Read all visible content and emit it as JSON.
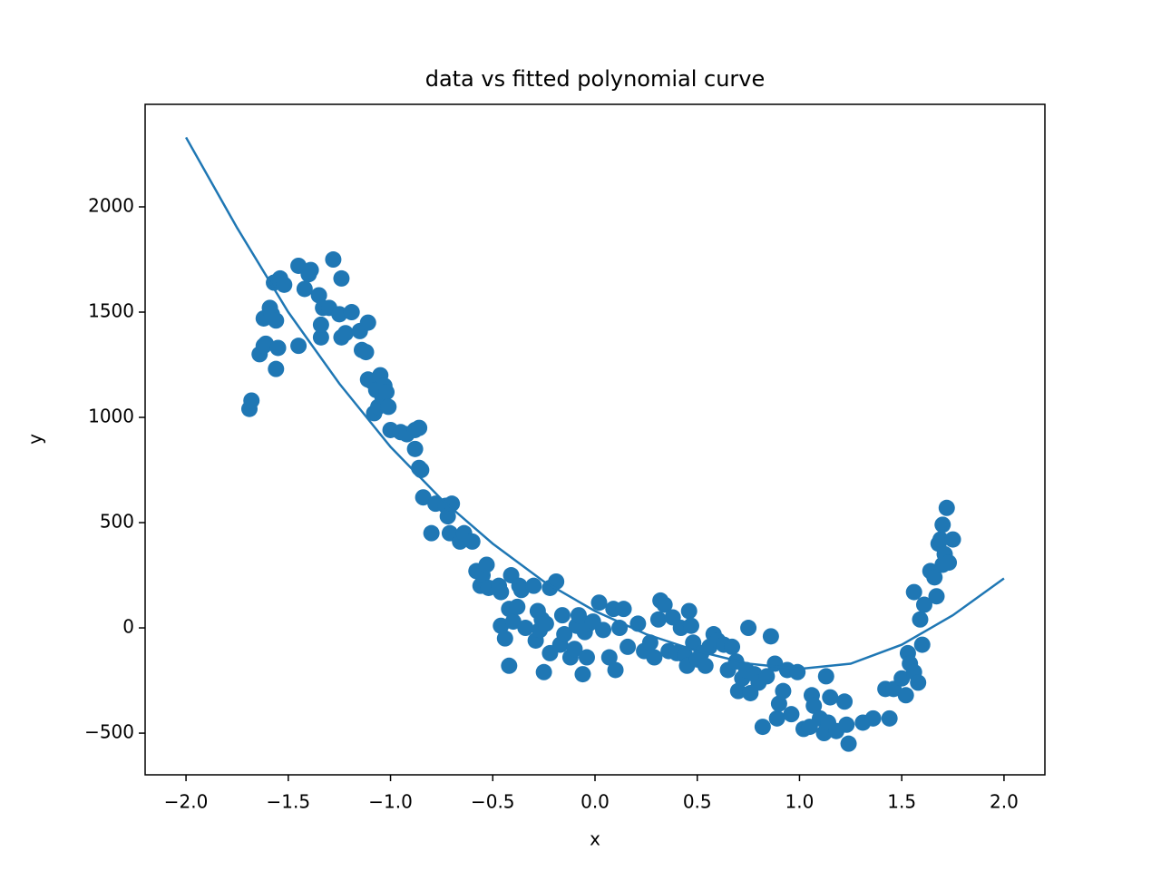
{
  "chart_data": {
    "type": "scatter",
    "title": "data vs fitted polynomial curve",
    "x_label": "x",
    "y_label": "y",
    "xlim": [
      -2.2,
      2.2
    ],
    "ylim": [
      -698,
      2487
    ],
    "xticks": [
      {
        "value": -2.0,
        "label": "−2.0"
      },
      {
        "value": -1.5,
        "label": "−1.5"
      },
      {
        "value": -1.0,
        "label": "−1.0"
      },
      {
        "value": -0.5,
        "label": "−0.5"
      },
      {
        "value": 0.0,
        "label": "0.0"
      },
      {
        "value": 0.5,
        "label": "0.5"
      },
      {
        "value": 1.0,
        "label": "1.0"
      },
      {
        "value": 1.5,
        "label": "1.5"
      },
      {
        "value": 2.0,
        "label": "2.0"
      }
    ],
    "yticks": [
      {
        "value": -500,
        "label": "−500"
      },
      0,
      500,
      1000,
      1500,
      2000
    ],
    "grid": false,
    "series": [
      {
        "type": "scatter",
        "color": "#1f77b4",
        "x": [
          -1.69,
          -1.68,
          -1.64,
          -1.62,
          -1.62,
          -1.61,
          -1.59,
          -1.58,
          -1.57,
          -1.56,
          -1.56,
          -1.55,
          -1.54,
          -1.52,
          -1.45,
          -1.45,
          -1.42,
          -1.4,
          -1.39,
          -1.35,
          -1.34,
          -1.34,
          -1.33,
          -1.3,
          -1.28,
          -1.25,
          -1.24,
          -1.24,
          -1.22,
          -1.19,
          -1.15,
          -1.14,
          -1.12,
          -1.11,
          -1.11,
          -1.09,
          -1.08,
          -1.07,
          -1.06,
          -1.05,
          -1.04,
          -1.03,
          -1.02,
          -1.01,
          -1.0,
          -0.95,
          -0.92,
          -0.88,
          -0.88,
          -0.86,
          -0.86,
          -0.85,
          -0.84,
          -0.8,
          -0.78,
          -0.73,
          -0.72,
          -0.71,
          -0.7,
          -0.66,
          -0.64,
          -0.6,
          -0.58,
          -0.56,
          -0.55,
          -0.53,
          -0.52,
          -0.47,
          -0.46,
          -0.46,
          -0.44,
          -0.42,
          -0.42,
          -0.41,
          -0.4,
          -0.38,
          -0.37,
          -0.36,
          -0.34,
          -0.3,
          -0.29,
          -0.28,
          -0.27,
          -0.26,
          -0.25,
          -0.24,
          -0.22,
          -0.22,
          -0.19,
          -0.17,
          -0.16,
          -0.15,
          -0.12,
          -0.1,
          -0.09,
          -0.08,
          -0.06,
          -0.05,
          -0.04,
          -0.03,
          -0.01,
          0.02,
          0.04,
          0.07,
          0.09,
          0.1,
          0.12,
          0.14,
          0.16,
          0.21,
          0.24,
          0.27,
          0.29,
          0.31,
          0.32,
          0.34,
          0.36,
          0.38,
          0.4,
          0.42,
          0.44,
          0.45,
          0.46,
          0.47,
          0.48,
          0.5,
          0.52,
          0.54,
          0.56,
          0.58,
          0.6,
          0.63,
          0.65,
          0.67,
          0.69,
          0.7,
          0.72,
          0.74,
          0.75,
          0.76,
          0.78,
          0.8,
          0.82,
          0.84,
          0.86,
          0.88,
          0.89,
          0.9,
          0.92,
          0.94,
          0.96,
          0.99,
          1.02,
          1.05,
          1.06,
          1.07,
          1.1,
          1.12,
          1.13,
          1.14,
          1.15,
          1.18,
          1.22,
          1.23,
          1.24,
          1.31,
          1.36,
          1.42,
          1.44,
          1.46,
          1.5,
          1.52,
          1.53,
          1.54,
          1.56,
          1.56,
          1.58,
          1.59,
          1.6,
          1.61,
          1.64,
          1.66,
          1.67,
          1.68,
          1.69,
          1.7,
          1.7,
          1.71,
          1.72,
          1.73,
          1.75
        ],
        "values": [
          1040,
          1080,
          1300,
          1340,
          1470,
          1350,
          1520,
          1490,
          1640,
          1230,
          1460,
          1330,
          1660,
          1630,
          1340,
          1720,
          1610,
          1680,
          1700,
          1580,
          1380,
          1440,
          1520,
          1520,
          1750,
          1490,
          1380,
          1660,
          1400,
          1500,
          1410,
          1320,
          1310,
          1450,
          1180,
          1170,
          1020,
          1130,
          1050,
          1200,
          1100,
          1150,
          1120,
          1050,
          940,
          930,
          920,
          850,
          940,
          950,
          760,
          750,
          620,
          450,
          590,
          580,
          530,
          450,
          590,
          410,
          450,
          410,
          270,
          200,
          250,
          300,
          190,
          200,
          170,
          10,
          -50,
          -180,
          90,
          250,
          30,
          100,
          200,
          180,
          0,
          200,
          -60,
          80,
          -10,
          40,
          -210,
          20,
          -120,
          190,
          220,
          -80,
          60,
          -30,
          -140,
          -100,
          10,
          60,
          -220,
          -20,
          -140,
          20,
          30,
          120,
          -10,
          -140,
          90,
          -200,
          0,
          90,
          -90,
          20,
          -110,
          -70,
          -140,
          40,
          130,
          110,
          -110,
          50,
          -120,
          0,
          -130,
          -180,
          80,
          10,
          -70,
          -150,
          -120,
          -180,
          -90,
          -30,
          -60,
          -80,
          -200,
          -90,
          -160,
          -300,
          -240,
          -200,
          0,
          -310,
          -220,
          -260,
          -470,
          -230,
          -40,
          -170,
          -430,
          -360,
          -300,
          -200,
          -410,
          -210,
          -480,
          -470,
          -320,
          -370,
          -430,
          -500,
          -230,
          -450,
          -330,
          -490,
          -350,
          -460,
          -550,
          -450,
          -430,
          -290,
          -430,
          -290,
          -240,
          -320,
          -120,
          -170,
          -210,
          170,
          -260,
          40,
          -80,
          110,
          270,
          240,
          150,
          400,
          420,
          300,
          490,
          350,
          570,
          310,
          420
        ]
      },
      {
        "type": "line",
        "color": "#1f77b4",
        "x": [
          -2.0,
          -1.75,
          -1.5,
          -1.25,
          -1.0,
          -0.75,
          -0.5,
          -0.25,
          0.0,
          0.25,
          0.5,
          0.75,
          1.0,
          1.25,
          1.5,
          1.75,
          2.0
        ],
        "values": [
          2330,
          1900,
          1500,
          1160,
          860,
          610,
          400,
          220,
          80,
          -30,
          -110,
          -170,
          -195,
          -170,
          -80,
          60,
          235
        ]
      }
    ]
  }
}
